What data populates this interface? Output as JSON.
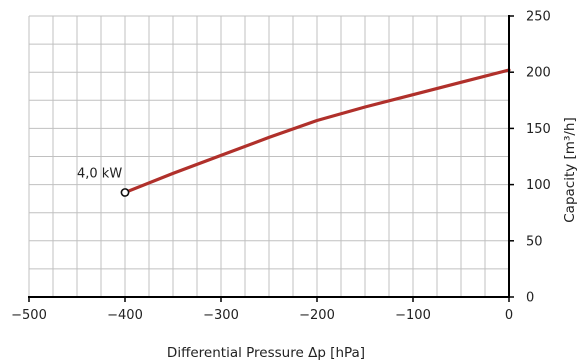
{
  "chart_data": {
    "type": "line",
    "xlabel": "Differential Pressure Δp [hPa]",
    "ylabel": "Capacity [m³/h]",
    "xlim": [
      -500,
      0
    ],
    "ylim": [
      0,
      250
    ],
    "x_ticks": [
      -500,
      -400,
      -300,
      -200,
      -100,
      0
    ],
    "y_ticks": [
      0,
      50,
      100,
      150,
      200,
      250
    ],
    "grid": true,
    "grid_x_step": 25,
    "grid_y_step": 25,
    "y_axis_position": "right",
    "series": [
      {
        "color": "#b0302b",
        "x": [
          -400,
          -350,
          -300,
          -250,
          -200,
          -150,
          -100,
          -50,
          0
        ],
        "y": [
          93,
          110,
          126,
          142,
          157,
          169,
          180,
          191,
          202
        ]
      }
    ],
    "annotations": [
      {
        "text": "4,0 kW",
        "x": -400,
        "y": 93,
        "marker": "open-circle"
      }
    ]
  }
}
